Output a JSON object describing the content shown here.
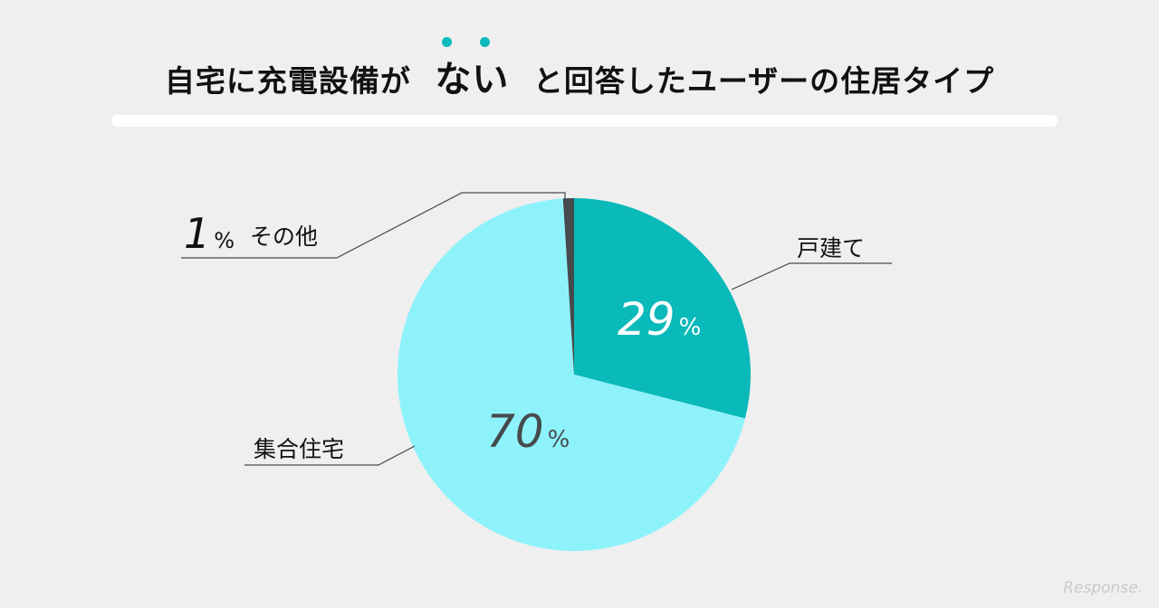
{
  "title": {
    "before": "自宅に充電設備が",
    "emphasis": "ない",
    "after": "と回答したユーザーの住居タイプ",
    "accent_color": "#0ab9b9"
  },
  "watermark": "Response.",
  "chart_data": {
    "type": "pie",
    "categories": [
      "戸建て",
      "集合住宅",
      "その他"
    ],
    "values": [
      29,
      70,
      1
    ],
    "value_labels": [
      "29",
      "70",
      "1"
    ],
    "unit": "%",
    "start_angle_deg": 0,
    "direction": "clockwise",
    "colors": [
      "#0ab9b9",
      "#8ef2fb",
      "#454a4d"
    ],
    "label_colors": [
      "#ffffff",
      "#454a4d",
      "#111111"
    ]
  }
}
